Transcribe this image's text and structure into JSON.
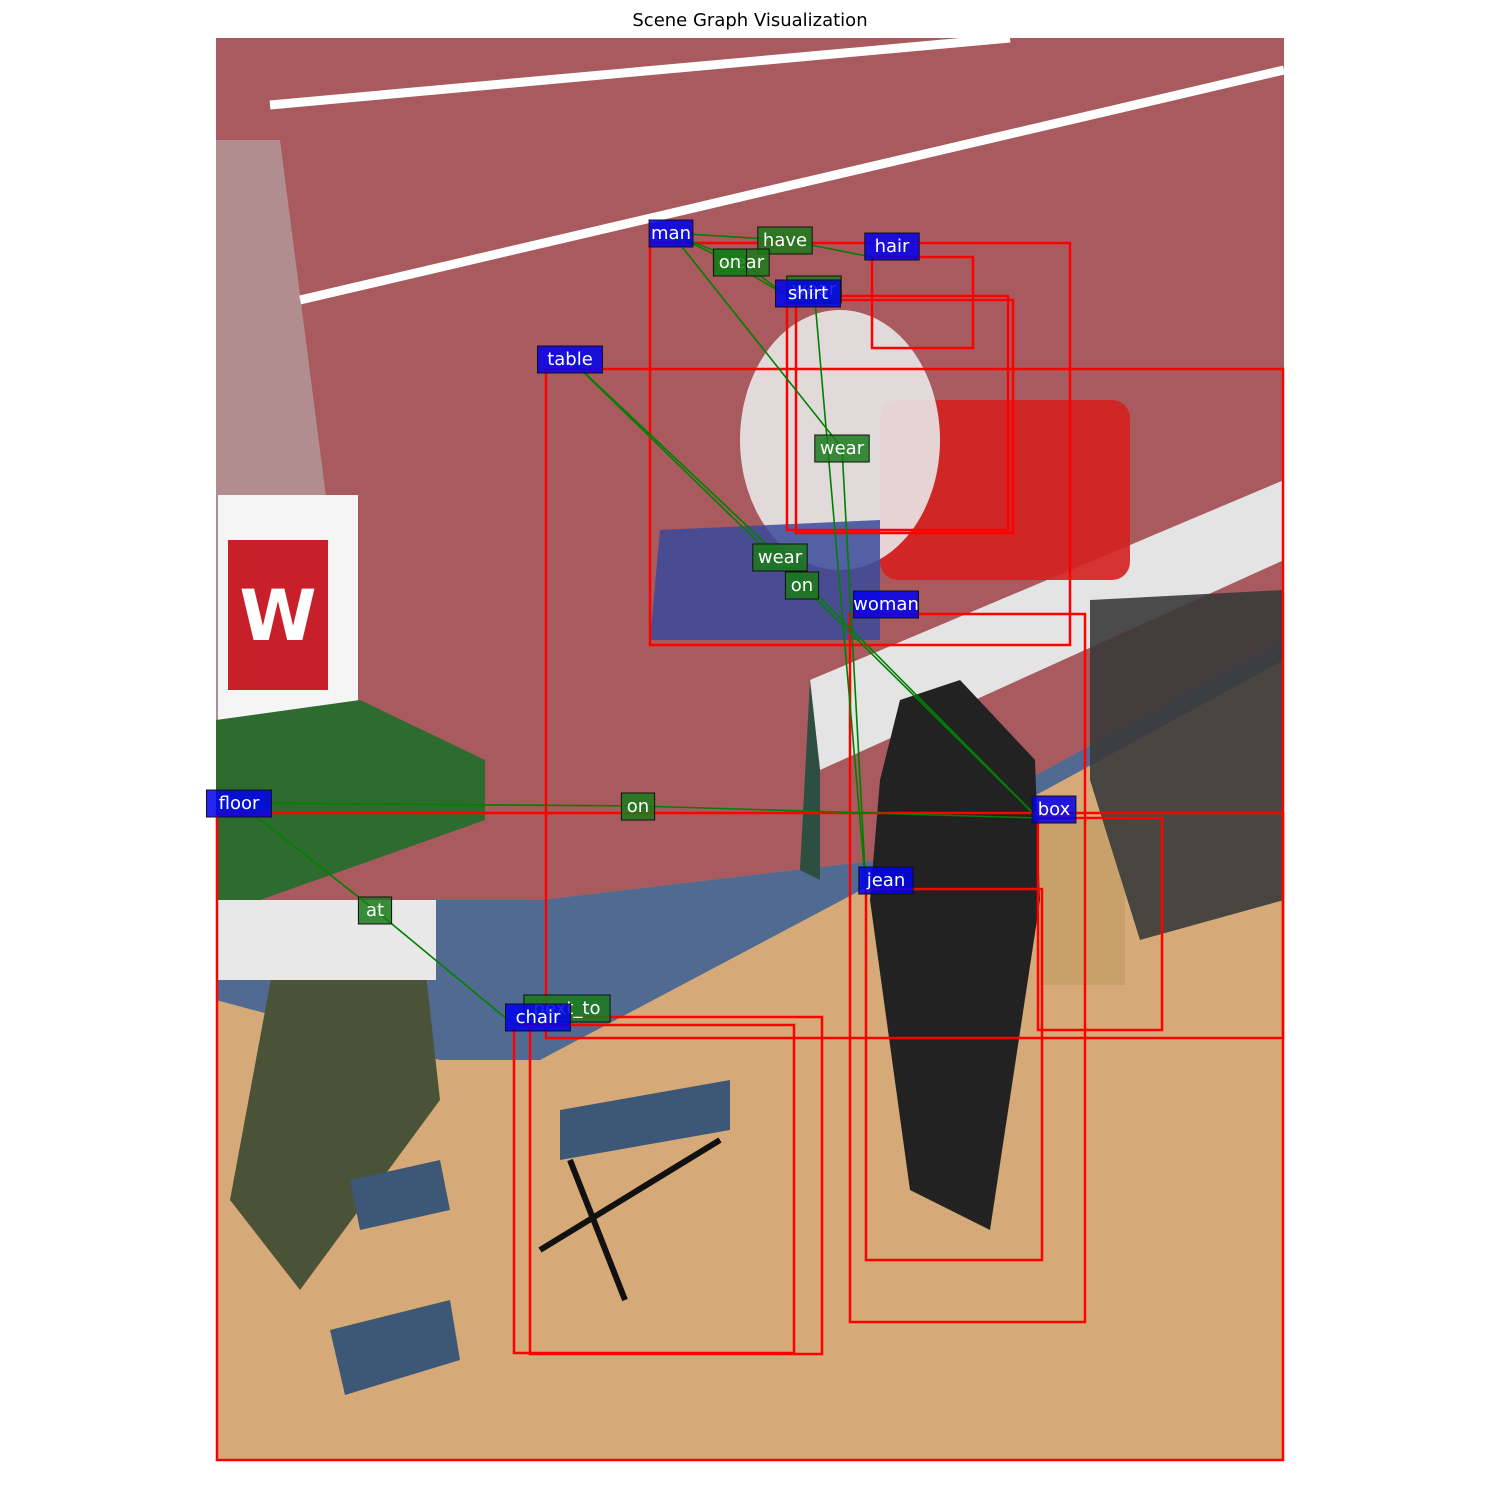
{
  "figure": {
    "title": "Scene Graph Visualization",
    "colors": {
      "box_stroke": "#ff0000",
      "edge_stroke": "#008000",
      "object_label_bg": "#0000ee",
      "relation_label_bg": "#1a7a1a",
      "label_text": "#ffffff",
      "court_clay": "#a85a5e",
      "court_wood": "#d6aa78",
      "court_lines": "#ffffff"
    }
  },
  "objects": [
    {
      "id": "man",
      "label": "man"
    },
    {
      "id": "hair",
      "label": "hair"
    },
    {
      "id": "shirt",
      "label": "shirt"
    },
    {
      "id": "table",
      "label": "table"
    },
    {
      "id": "woman",
      "label": "woman"
    },
    {
      "id": "floor",
      "label": "floor"
    },
    {
      "id": "box",
      "label": "box"
    },
    {
      "id": "jean",
      "label": "jean"
    },
    {
      "id": "chair",
      "label": "chair"
    }
  ],
  "relations": [
    {
      "subject": "man",
      "predicate": "have",
      "object": "hair"
    },
    {
      "subject": "man",
      "predicate": "wear",
      "object": "shirt"
    },
    {
      "subject": "man",
      "predicate": "on",
      "object": "shirt"
    },
    {
      "subject": "man",
      "predicate": "wear",
      "object": "jean"
    },
    {
      "subject": "shirt",
      "predicate": "wear",
      "object": "jean"
    },
    {
      "subject": "table",
      "predicate": "wear",
      "object": "box"
    },
    {
      "subject": "table",
      "predicate": "on",
      "object": "box"
    },
    {
      "subject": "floor",
      "predicate": "on",
      "object": "box"
    },
    {
      "subject": "floor",
      "predicate": "at",
      "object": "chair"
    },
    {
      "subject": "chair",
      "predicate": "next_to",
      "object": "chair"
    }
  ]
}
